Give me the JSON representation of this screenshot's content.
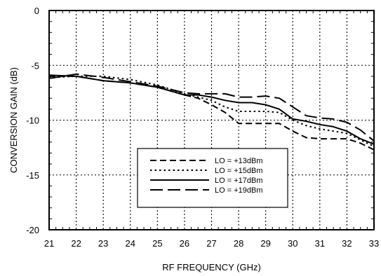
{
  "chart_data": {
    "type": "line",
    "xlabel": "RF FREQUENCY (GHz)",
    "ylabel": "CONVERSION GAIN (dB)",
    "xlim": [
      21,
      33
    ],
    "ylim": [
      -20,
      0
    ],
    "xticks": [
      21,
      22,
      23,
      24,
      25,
      26,
      27,
      28,
      29,
      30,
      31,
      32,
      33
    ],
    "yticks": [
      0,
      -5,
      -10,
      -15,
      -20
    ],
    "grid": true,
    "legend_position": "bottom-center",
    "series": [
      {
        "name": "LO = +13dBm",
        "dash": "long-dash",
        "x": [
          21,
          22,
          23,
          24,
          25,
          26,
          26.5,
          27,
          27.5,
          28,
          28.5,
          29,
          29.5,
          30,
          30.5,
          31,
          31.5,
          32,
          32.5,
          33
        ],
        "y": [
          -6.0,
          -6.0,
          -6.4,
          -6.6,
          -7.0,
          -7.7,
          -8.0,
          -8.6,
          -9.3,
          -10.3,
          -10.3,
          -10.3,
          -10.3,
          -11.0,
          -11.6,
          -11.7,
          -11.7,
          -11.7,
          -12.1,
          -12.7
        ]
      },
      {
        "name": "LO = +15dBm",
        "dash": "dotted",
        "x": [
          21,
          22,
          23,
          24,
          25,
          26,
          26.5,
          27,
          27.5,
          28,
          28.5,
          29,
          29.5,
          30,
          30.5,
          31,
          31.5,
          32,
          32.5,
          33
        ],
        "y": [
          -6.1,
          -6.0,
          -6.0,
          -6.3,
          -6.8,
          -7.6,
          -7.9,
          -8.2,
          -8.8,
          -9.2,
          -9.2,
          -9.2,
          -9.3,
          -10.0,
          -10.5,
          -10.8,
          -11.0,
          -11.2,
          -11.8,
          -12.4
        ]
      },
      {
        "name": "LO = +17dBm",
        "dash": "solid",
        "x": [
          21,
          22,
          23,
          24,
          25,
          26,
          26.5,
          27,
          27.5,
          28,
          28.5,
          29,
          29.5,
          30,
          30.5,
          31,
          31.5,
          32,
          32.5,
          33
        ],
        "y": [
          -5.9,
          -6.0,
          -6.4,
          -6.6,
          -7.0,
          -7.7,
          -7.7,
          -7.9,
          -8.2,
          -8.4,
          -8.4,
          -8.6,
          -9.0,
          -9.9,
          -10.1,
          -10.4,
          -10.6,
          -11.0,
          -11.7,
          -12.2
        ]
      },
      {
        "name": "LO = +19dBm",
        "dash": "dashed",
        "x": [
          21,
          22,
          23,
          24,
          25,
          26,
          26.5,
          27,
          27.5,
          28,
          28.5,
          29,
          29.5,
          30,
          30.5,
          31,
          31.5,
          32,
          32.5,
          33
        ],
        "y": [
          -6.2,
          -5.8,
          -6.1,
          -6.5,
          -6.9,
          -7.5,
          -7.6,
          -7.6,
          -7.6,
          -7.9,
          -7.9,
          -7.8,
          -8.0,
          -8.8,
          -9.6,
          -9.8,
          -9.9,
          -10.2,
          -10.9,
          -11.9
        ]
      }
    ]
  }
}
